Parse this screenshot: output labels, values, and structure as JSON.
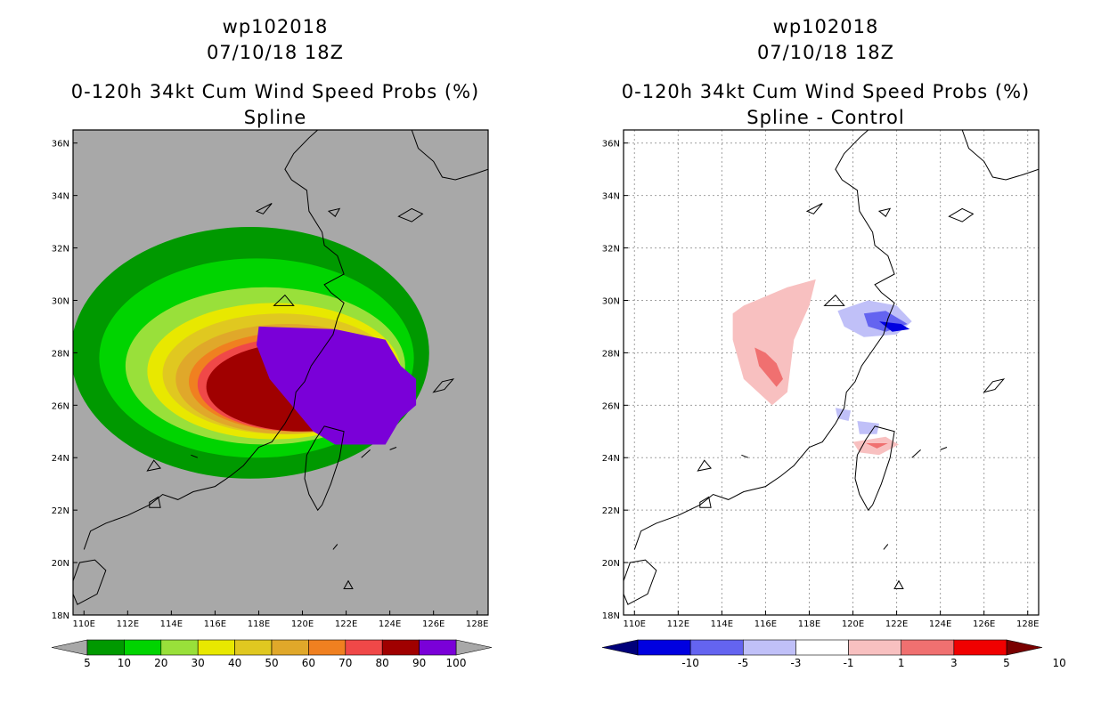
{
  "chart_data": [
    {
      "type": "heatmap",
      "title_lines": [
        "wp102018",
        "07/10/18 18Z",
        "0-120h 34kt Cum Wind Speed Probs (%)",
        "Spline"
      ],
      "x_ticks": [
        "110E",
        "112E",
        "114E",
        "116E",
        "118E",
        "120E",
        "122E",
        "124E",
        "126E",
        "128E"
      ],
      "y_ticks": [
        "18N",
        "20N",
        "22N",
        "24N",
        "26N",
        "28N",
        "30N",
        "32N",
        "34N",
        "36N"
      ],
      "xlim": [
        109.5,
        128.5
      ],
      "ylim": [
        18,
        36.5
      ],
      "background": "#a8a8a8",
      "legend_values": [
        "5",
        "10",
        "20",
        "30",
        "40",
        "50",
        "60",
        "70",
        "80",
        "90",
        "100"
      ],
      "legend_colors": [
        "#009900",
        "#00d400",
        "#99e03a",
        "#e8e800",
        "#e0c820",
        "#e0a82a",
        "#f08020",
        "#f04848",
        "#a00000",
        "#7a00d8"
      ],
      "levels": [
        {
          "min": 5,
          "color": "#009900",
          "center": [
            117.6,
            28.0
          ],
          "rx": 8.2,
          "ry": 4.8
        },
        {
          "min": 10,
          "color": "#00d400",
          "center": [
            117.9,
            27.8
          ],
          "rx": 7.2,
          "ry": 3.8
        },
        {
          "min": 20,
          "color": "#99e03a",
          "center": [
            118.3,
            27.5
          ],
          "rx": 6.4,
          "ry": 3.0
        },
        {
          "min": 30,
          "color": "#e8e800",
          "center": [
            118.7,
            27.3
          ],
          "rx": 5.8,
          "ry": 2.6
        },
        {
          "min": 40,
          "color": "#e0c820",
          "center": [
            119.0,
            27.2
          ],
          "rx": 5.4,
          "ry": 2.3
        },
        {
          "min": 50,
          "color": "#e0a82a",
          "center": [
            119.3,
            27.0
          ],
          "rx": 5.1,
          "ry": 2.1
        },
        {
          "min": 60,
          "color": "#f08020",
          "center": [
            119.6,
            26.9
          ],
          "rx": 4.8,
          "ry": 1.9
        },
        {
          "min": 70,
          "color": "#f04848",
          "center": [
            119.8,
            26.8
          ],
          "rx": 4.6,
          "ry": 1.8
        },
        {
          "min": 80,
          "color": "#a00000",
          "center": [
            120.0,
            26.7
          ],
          "rx": 4.4,
          "ry": 1.7
        }
      ],
      "core_100_polygon": [
        [
          118.0,
          29.0
        ],
        [
          121.5,
          28.9
        ],
        [
          123.8,
          28.5
        ],
        [
          124.5,
          27.5
        ],
        [
          125.2,
          27.0
        ],
        [
          125.2,
          26.0
        ],
        [
          124.5,
          25.5
        ],
        [
          123.8,
          24.5
        ],
        [
          121.5,
          24.5
        ],
        [
          120.5,
          25.0
        ],
        [
          119.5,
          26.0
        ],
        [
          118.5,
          27.0
        ],
        [
          117.9,
          28.3
        ]
      ]
    },
    {
      "type": "heatmap",
      "title_lines": [
        "wp102018",
        "07/10/18 18Z",
        "0-120h 34kt Cum Wind Speed Probs (%)",
        "Spline - Control"
      ],
      "x_ticks": [
        "110E",
        "112E",
        "114E",
        "116E",
        "118E",
        "120E",
        "122E",
        "124E",
        "126E",
        "128E"
      ],
      "y_ticks": [
        "18N",
        "20N",
        "22N",
        "24N",
        "26N",
        "28N",
        "30N",
        "32N",
        "34N",
        "36N"
      ],
      "xlim": [
        109.5,
        128.5
      ],
      "ylim": [
        18,
        36.5
      ],
      "background": "#ffffff",
      "legend_values": [
        "-10",
        "-5",
        "-3",
        "-1",
        "1",
        "3",
        "5",
        "10"
      ],
      "legend_colors": [
        "#00007a",
        "#0000e0",
        "#6464f0",
        "#c0c0f8",
        "#ffffff",
        "#f8c0c0",
        "#f07070",
        "#f00000",
        "#7a0000"
      ],
      "anomalies": [
        {
          "range": "1 to 3",
          "color": "#f8c0c0",
          "points": [
            [
              115.0,
              29.8
            ],
            [
              117.0,
              30.5
            ],
            [
              118.3,
              30.8
            ],
            [
              118.0,
              29.8
            ],
            [
              117.3,
              28.5
            ],
            [
              117.0,
              26.5
            ],
            [
              116.3,
              26.0
            ],
            [
              115.0,
              27.0
            ],
            [
              114.5,
              28.5
            ],
            [
              114.5,
              29.5
            ]
          ]
        },
        {
          "range": "3 to 5",
          "color": "#f07070",
          "points": [
            [
              115.5,
              28.2
            ],
            [
              115.7,
              27.5
            ],
            [
              116.5,
              26.7
            ],
            [
              116.8,
              27.0
            ],
            [
              116.5,
              27.6
            ],
            [
              116.0,
              28.0
            ]
          ]
        },
        {
          "range": "-1 to -3",
          "color": "#c0c0f8",
          "points": [
            [
              119.3,
              29.6
            ],
            [
              120.7,
              30.0
            ],
            [
              122.0,
              29.8
            ],
            [
              122.7,
              29.2
            ],
            [
              122.0,
              28.7
            ],
            [
              120.5,
              28.6
            ],
            [
              119.6,
              29.0
            ]
          ]
        },
        {
          "range": "-3 to -5",
          "color": "#6464f0",
          "points": [
            [
              120.5,
              29.5
            ],
            [
              121.5,
              29.6
            ],
            [
              122.5,
              29.1
            ],
            [
              121.5,
              28.8
            ],
            [
              120.7,
              29.0
            ]
          ]
        },
        {
          "range": "-5 to -10",
          "color": "#0000e0",
          "points": [
            [
              121.2,
              29.2
            ],
            [
              122.2,
              29.1
            ],
            [
              122.6,
              28.9
            ],
            [
              121.8,
              28.8
            ]
          ]
        },
        {
          "range": "-1 to -3",
          "color": "#c0c0f8",
          "points": [
            [
              119.2,
              25.9
            ],
            [
              119.9,
              25.8
            ],
            [
              119.8,
              25.4
            ],
            [
              119.3,
              25.5
            ]
          ]
        },
        {
          "range": "-1 to -3",
          "color": "#c0c0f8",
          "points": [
            [
              120.2,
              25.4
            ],
            [
              121.2,
              25.3
            ],
            [
              121.1,
              24.9
            ],
            [
              120.3,
              24.9
            ]
          ]
        },
        {
          "range": "1 to 3",
          "color": "#f8c0c0",
          "points": [
            [
              120.0,
              24.6
            ],
            [
              121.5,
              24.8
            ],
            [
              122.1,
              24.5
            ],
            [
              121.2,
              24.1
            ],
            [
              120.3,
              24.2
            ]
          ]
        },
        {
          "range": "3 to 5",
          "color": "#f07070",
          "points": [
            [
              120.6,
              24.55
            ],
            [
              121.6,
              24.55
            ],
            [
              121.1,
              24.35
            ]
          ]
        }
      ]
    }
  ]
}
